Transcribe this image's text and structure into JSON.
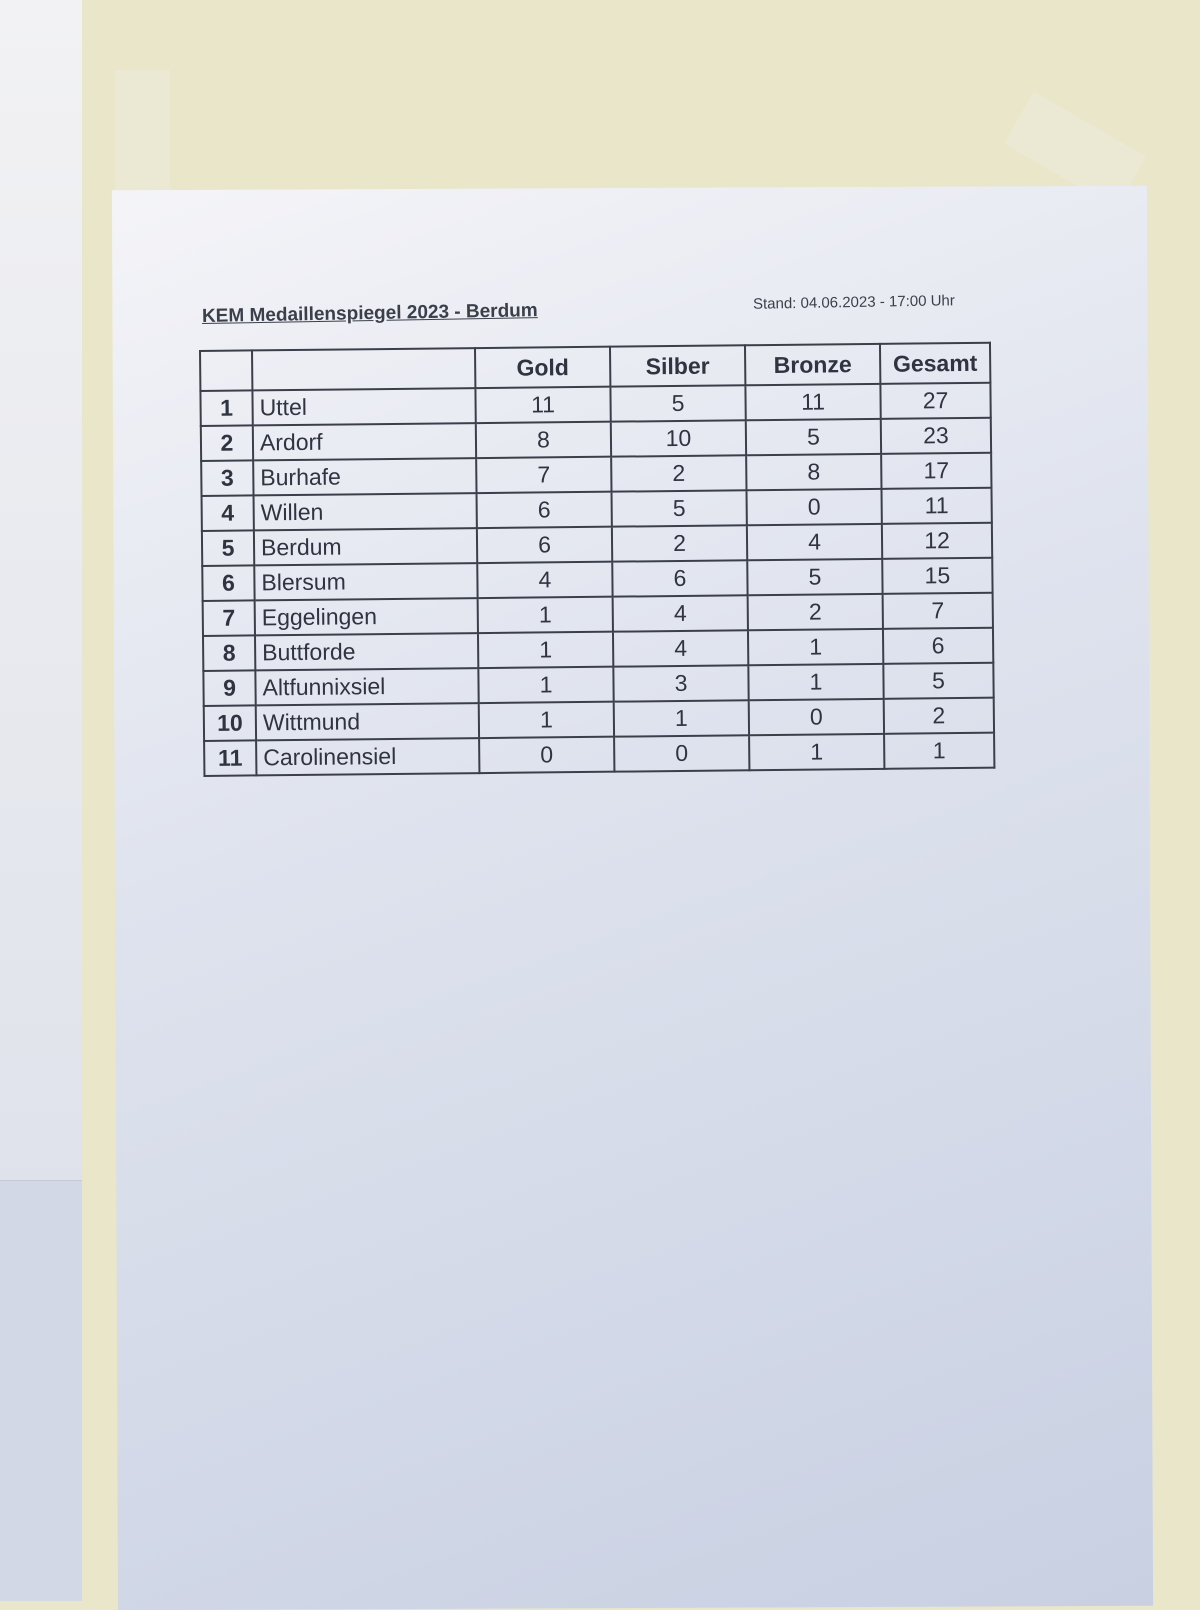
{
  "document": {
    "title": "KEM Medaillenspiegel 2023 - Berdum",
    "stand": "Stand: 04.06.2023 - 17:00 Uhr"
  },
  "table": {
    "headers": [
      "",
      "",
      "Gold",
      "Silber",
      "Bronze",
      "Gesamt"
    ],
    "rows": [
      [
        "1",
        "Uttel",
        "11",
        "5",
        "11",
        "27"
      ],
      [
        "2",
        "Ardorf",
        "8",
        "10",
        "5",
        "23"
      ],
      [
        "3",
        "Burhafe",
        "7",
        "2",
        "8",
        "17"
      ],
      [
        "4",
        "Willen",
        "6",
        "5",
        "0",
        "11"
      ],
      [
        "5",
        "Berdum",
        "6",
        "2",
        "4",
        "12"
      ],
      [
        "6",
        "Blersum",
        "4",
        "6",
        "5",
        "15"
      ],
      [
        "7",
        "Eggelingen",
        "1",
        "4",
        "2",
        "7"
      ],
      [
        "8",
        "Buttforde",
        "1",
        "4",
        "1",
        "6"
      ],
      [
        "9",
        "Altfunnixsiel",
        "1",
        "3",
        "1",
        "5"
      ],
      [
        "10",
        "Wittmund",
        "1",
        "1",
        "0",
        "2"
      ],
      [
        "11",
        "Carolinensiel",
        "0",
        "0",
        "1",
        "1"
      ]
    ]
  }
}
